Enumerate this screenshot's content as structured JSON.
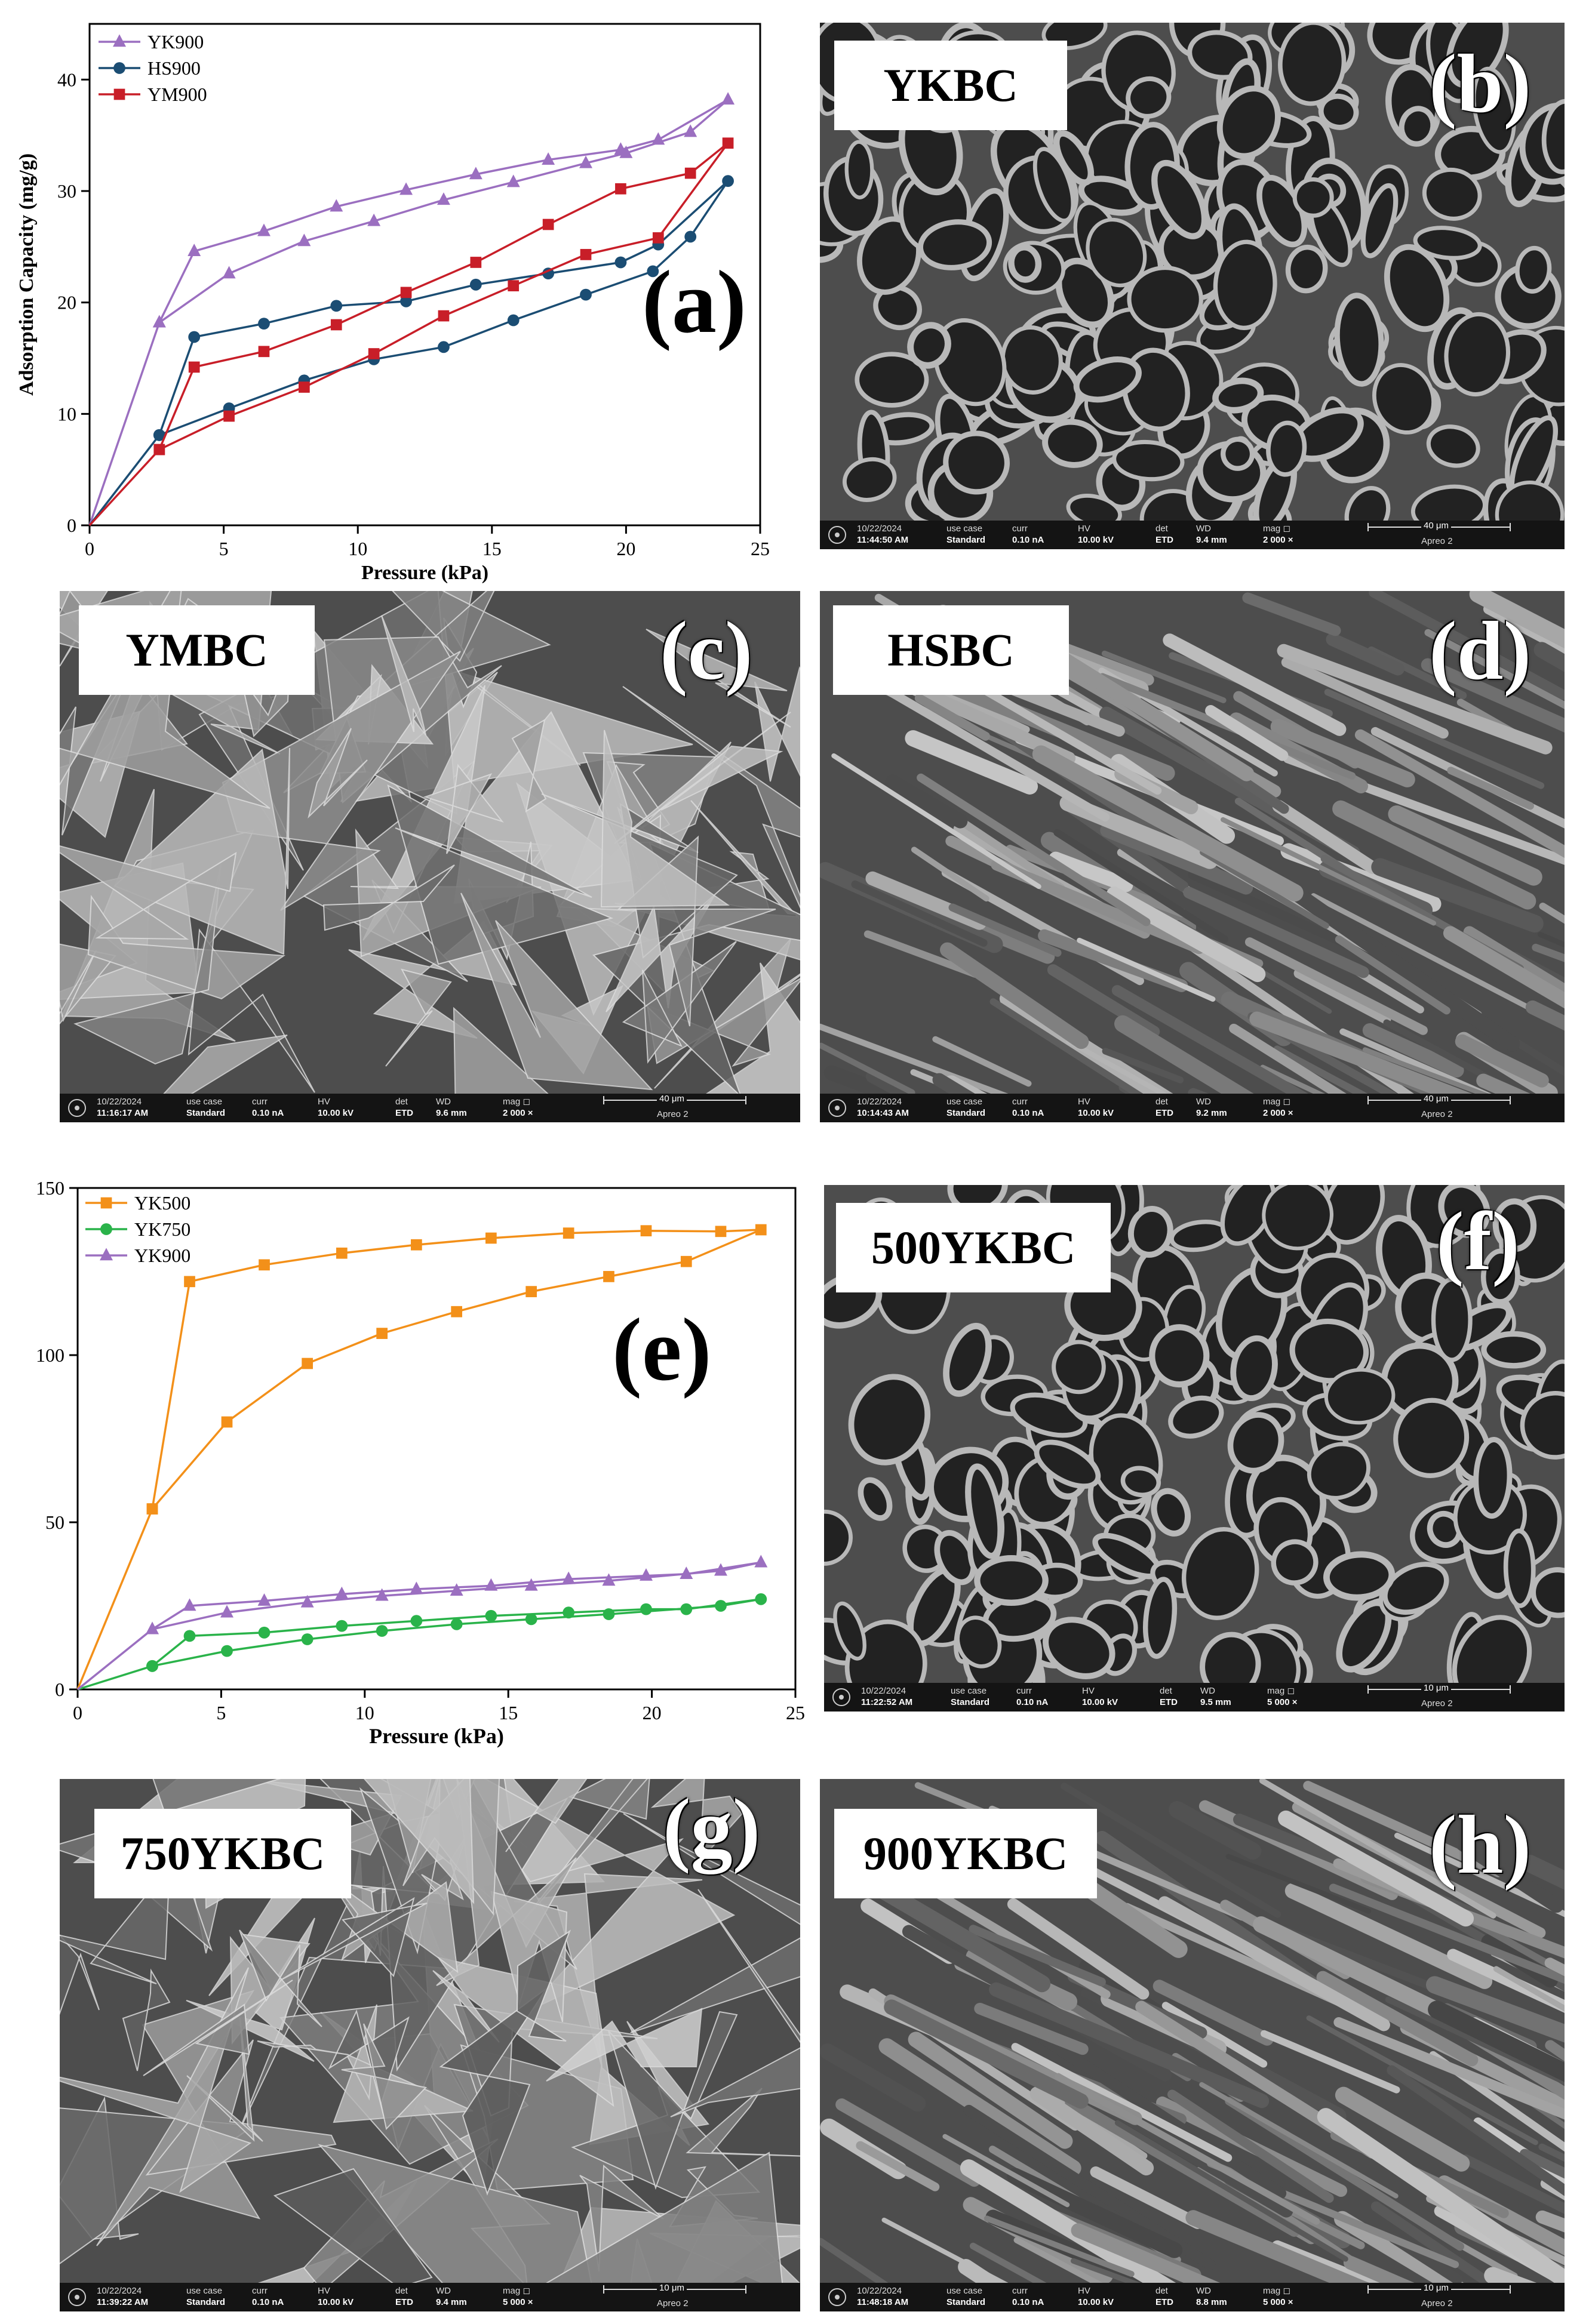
{
  "chart_data": [
    {
      "panel": "(a)",
      "type": "line",
      "xlabel": "Pressure (kPa)",
      "ylabel": "Adsorption Capacity (mg/g)",
      "xlim": [
        0,
        25
      ],
      "ylim": [
        0,
        45
      ],
      "xticks": [
        0,
        5,
        10,
        15,
        20,
        25
      ],
      "yticks": [
        0,
        10,
        20,
        30,
        40
      ],
      "legend": "top-left",
      "series": [
        {
          "name": "YK900",
          "color": "#9b6fc0",
          "marker": "triangle",
          "points": [
            [
              0,
              0
            ],
            [
              2.6,
              18.2
            ],
            [
              3.9,
              24.6
            ],
            [
              6.5,
              26.4
            ],
            [
              9.2,
              28.6
            ],
            [
              11.8,
              30.1
            ],
            [
              14.4,
              31.5
            ],
            [
              17.1,
              32.8
            ],
            [
              19.8,
              33.7
            ],
            [
              21.2,
              34.6
            ],
            [
              23.8,
              38.2
            ],
            [
              22.4,
              35.3
            ],
            [
              20.0,
              33.4
            ],
            [
              18.5,
              32.5
            ],
            [
              15.8,
              30.8
            ],
            [
              13.2,
              29.2
            ],
            [
              10.6,
              27.3
            ],
            [
              8.0,
              25.5
            ],
            [
              5.2,
              22.6
            ],
            [
              2.6,
              18.2
            ]
          ]
        },
        {
          "name": "HS900",
          "color": "#1b4d73",
          "marker": "circle",
          "points": [
            [
              0,
              0
            ],
            [
              2.6,
              8.1
            ],
            [
              3.9,
              16.9
            ],
            [
              6.5,
              18.1
            ],
            [
              9.2,
              19.7
            ],
            [
              11.8,
              20.1
            ],
            [
              14.4,
              21.6
            ],
            [
              17.1,
              22.6
            ],
            [
              19.8,
              23.6
            ],
            [
              21.2,
              25.2
            ],
            [
              23.8,
              30.9
            ],
            [
              22.4,
              25.9
            ],
            [
              21.0,
              22.8
            ],
            [
              18.5,
              20.7
            ],
            [
              15.8,
              18.4
            ],
            [
              13.2,
              16.0
            ],
            [
              10.6,
              14.9
            ],
            [
              8.0,
              13.0
            ],
            [
              5.2,
              10.5
            ],
            [
              2.6,
              8.1
            ]
          ]
        },
        {
          "name": "YM900",
          "color": "#c81e28",
          "marker": "square",
          "points": [
            [
              0,
              0
            ],
            [
              2.6,
              6.8
            ],
            [
              3.9,
              14.2
            ],
            [
              6.5,
              15.6
            ],
            [
              9.2,
              18.0
            ],
            [
              11.8,
              20.9
            ],
            [
              14.4,
              23.6
            ],
            [
              17.1,
              27.0
            ],
            [
              19.8,
              30.2
            ],
            [
              22.4,
              31.6
            ],
            [
              23.8,
              34.3
            ],
            [
              21.2,
              25.8
            ],
            [
              18.5,
              24.3
            ],
            [
              15.8,
              21.5
            ],
            [
              13.2,
              18.8
            ],
            [
              10.6,
              15.4
            ],
            [
              8.0,
              12.4
            ],
            [
              5.2,
              9.8
            ],
            [
              2.6,
              6.8
            ]
          ]
        }
      ]
    },
    {
      "panel": "(e)",
      "type": "line",
      "xlabel": "Pressure (kPa)",
      "ylabel": "",
      "xlim": [
        0,
        25
      ],
      "ylim": [
        0,
        150
      ],
      "xticks": [
        0,
        5,
        10,
        15,
        20,
        25
      ],
      "yticks": [
        0,
        50,
        100,
        150
      ],
      "legend": "top-left",
      "series": [
        {
          "name": "YK500",
          "color": "#f39019",
          "marker": "square",
          "points": [
            [
              0,
              0
            ],
            [
              2.6,
              54
            ],
            [
              3.9,
              122
            ],
            [
              6.5,
              127
            ],
            [
              9.2,
              130.5
            ],
            [
              11.8,
              133
            ],
            [
              14.4,
              135
            ],
            [
              17.1,
              136.5
            ],
            [
              19.8,
              137.2
            ],
            [
              22.4,
              137
            ],
            [
              23.8,
              137.5
            ],
            [
              21.2,
              128
            ],
            [
              18.5,
              123.5
            ],
            [
              15.8,
              119
            ],
            [
              13.2,
              113
            ],
            [
              10.6,
              106.5
            ],
            [
              8.0,
              97.5
            ],
            [
              5.2,
              80
            ],
            [
              2.6,
              54
            ]
          ]
        },
        {
          "name": "YK750",
          "color": "#2ab34a",
          "marker": "circle",
          "points": [
            [
              0,
              0
            ],
            [
              2.6,
              7
            ],
            [
              3.9,
              16
            ],
            [
              6.5,
              17
            ],
            [
              9.2,
              19
            ],
            [
              11.8,
              20.5
            ],
            [
              14.4,
              22
            ],
            [
              17.1,
              23
            ],
            [
              19.8,
              24
            ],
            [
              21.2,
              24
            ],
            [
              23.8,
              27
            ],
            [
              22.4,
              25
            ],
            [
              18.5,
              22.5
            ],
            [
              15.8,
              21
            ],
            [
              13.2,
              19.5
            ],
            [
              10.6,
              17.5
            ],
            [
              8.0,
              15
            ],
            [
              5.2,
              11.5
            ],
            [
              2.6,
              7
            ]
          ]
        },
        {
          "name": "YK900",
          "color": "#9b6fc0",
          "marker": "triangle",
          "points": [
            [
              0,
              0
            ],
            [
              2.6,
              18
            ],
            [
              3.9,
              25
            ],
            [
              6.5,
              26.5
            ],
            [
              9.2,
              28.5
            ],
            [
              11.8,
              30
            ],
            [
              14.4,
              31
            ],
            [
              17.1,
              33
            ],
            [
              19.8,
              34
            ],
            [
              21.2,
              34.5
            ],
            [
              23.8,
              38
            ],
            [
              22.4,
              35.5
            ],
            [
              18.5,
              32.5
            ],
            [
              15.8,
              31
            ],
            [
              13.2,
              29.5
            ],
            [
              10.6,
              28
            ],
            [
              8.0,
              26
            ],
            [
              5.2,
              23
            ],
            [
              2.6,
              18
            ]
          ]
        }
      ]
    }
  ],
  "panels": {
    "a": "(a)",
    "b": "(b)",
    "c": "(c)",
    "d": "(d)",
    "e": "(e)",
    "f": "(f)",
    "g": "(g)",
    "h": "(h)"
  },
  "sem_images": {
    "b": {
      "label": "YKBC",
      "date": "10/22/2024",
      "time": "11:44:50 AM",
      "wd": "9.4 mm",
      "mag": "2 000 ×",
      "scale": "40 μm"
    },
    "c": {
      "label": "YMBC",
      "date": "10/22/2024",
      "time": "11:16:17 AM",
      "wd": "9.6 mm",
      "mag": "2 000 ×",
      "scale": "40 μm"
    },
    "d": {
      "label": "HSBC",
      "date": "10/22/2024",
      "time": "10:14:43 AM",
      "wd": "9.2 mm",
      "mag": "2 000 ×",
      "scale": "40 μm"
    },
    "f": {
      "label": "500YKBC",
      "date": "10/22/2024",
      "time": "11:22:52 AM",
      "wd": "9.5 mm",
      "mag": "5 000 ×",
      "scale": "10 μm"
    },
    "g": {
      "label": "750YKBC",
      "date": "10/22/2024",
      "time": "11:39:22 AM",
      "wd": "9.4 mm",
      "mag": "5 000 ×",
      "scale": "10 μm"
    },
    "h": {
      "label": "900YKBC",
      "date": "10/22/2024",
      "time": "11:48:18 AM",
      "wd": "8.8 mm",
      "mag": "5 000 ×",
      "scale": "10 μm"
    }
  },
  "sem_bar": {
    "use_case_label": "use case",
    "use_case_value": "Standard",
    "curr_label": "curr",
    "curr_value": "0.10 nA",
    "hv_label": "HV",
    "hv_value": "10.00 kV",
    "det_label": "det",
    "det_value": "ETD",
    "wd_label": "WD",
    "mag_label": "mag ◻",
    "model": "Apreo 2"
  }
}
